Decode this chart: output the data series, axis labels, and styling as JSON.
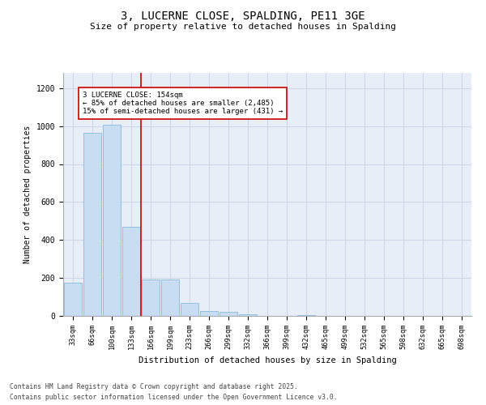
{
  "title_line1": "3, LUCERNE CLOSE, SPALDING, PE11 3GE",
  "title_line2": "Size of property relative to detached houses in Spalding",
  "xlabel": "Distribution of detached houses by size in Spalding",
  "ylabel": "Number of detached properties",
  "categories": [
    "33sqm",
    "66sqm",
    "100sqm",
    "133sqm",
    "166sqm",
    "199sqm",
    "233sqm",
    "266sqm",
    "299sqm",
    "332sqm",
    "366sqm",
    "399sqm",
    "432sqm",
    "465sqm",
    "499sqm",
    "532sqm",
    "565sqm",
    "598sqm",
    "632sqm",
    "665sqm",
    "698sqm"
  ],
  "values": [
    175,
    965,
    1005,
    470,
    190,
    190,
    70,
    25,
    20,
    10,
    0,
    0,
    5,
    0,
    0,
    0,
    0,
    0,
    0,
    0,
    0
  ],
  "bar_color": "#c9ddf2",
  "bar_edge_color": "#7ab0d8",
  "grid_color": "#ccd5e5",
  "bg_color": "#e8eef8",
  "red_line_x": 3.5,
  "annotation_text": "3 LUCERNE CLOSE: 154sqm\n← 85% of detached houses are smaller (2,485)\n15% of semi-detached houses are larger (431) →",
  "annotation_box_color": "#ffffff",
  "annotation_border_color": "#cc0000",
  "footer_line1": "Contains HM Land Registry data © Crown copyright and database right 2025.",
  "footer_line2": "Contains public sector information licensed under the Open Government Licence v3.0.",
  "ylim": [
    0,
    1280
  ],
  "yticks": [
    0,
    200,
    400,
    600,
    800,
    1000,
    1200
  ]
}
